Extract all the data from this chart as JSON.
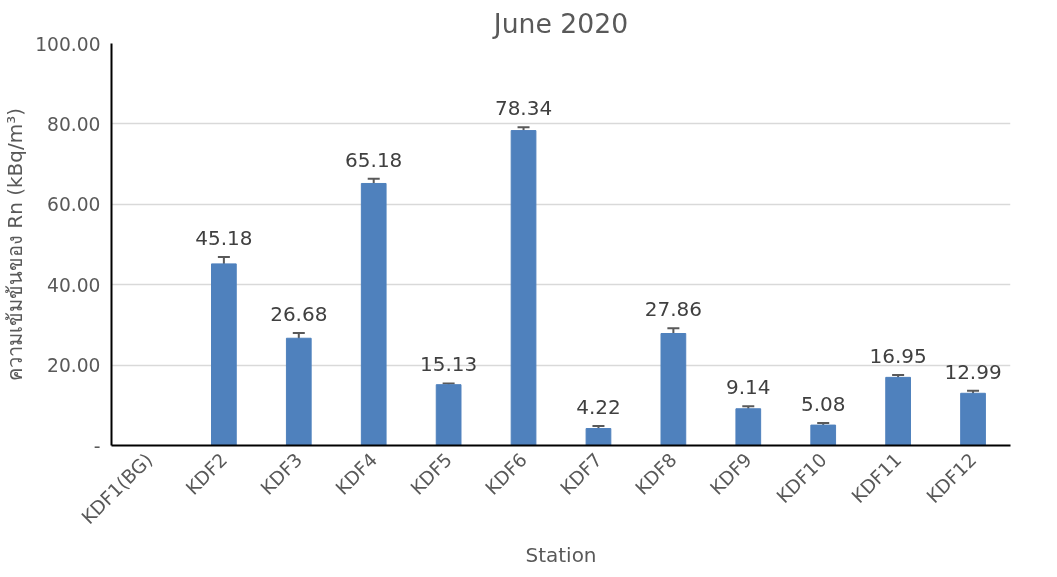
{
  "chart_data": {
    "type": "bar",
    "title": "June 2020",
    "xlabel": "Station",
    "ylabel": "ความเข้มข้นของ Rn (kBq/m³)",
    "categories": [
      "KDF1(BG)",
      "KDF2",
      "KDF3",
      "KDF4",
      "KDF5",
      "KDF6",
      "KDF7",
      "KDF8",
      "KDF9",
      "KDF10",
      "KDF11",
      "KDF12"
    ],
    "values": [
      null,
      45.18,
      26.68,
      65.18,
      15.13,
      78.34,
      4.22,
      27.86,
      9.14,
      5.08,
      16.95,
      12.99
    ],
    "value_labels": [
      null,
      "45.18",
      "26.68",
      "65.18",
      "15.13",
      "78.34",
      "4.22",
      "27.86",
      "9.14",
      "5.08",
      "16.95",
      "12.99"
    ],
    "errors": [
      null,
      1.7,
      1.3,
      1.2,
      0.3,
      0.8,
      0.6,
      1.3,
      0.6,
      0.5,
      0.6,
      0.6
    ],
    "color": "#4f81bd",
    "ylim": [
      0,
      100
    ],
    "yticks": [
      {
        "value": 0,
        "label": "-"
      },
      {
        "value": 20,
        "label": "20.00"
      },
      {
        "value": 40,
        "label": "40.00"
      },
      {
        "value": 60,
        "label": "60.00"
      },
      {
        "value": 80,
        "label": "80.00"
      },
      {
        "value": 100,
        "label": "100.00"
      }
    ],
    "grid": "y"
  }
}
